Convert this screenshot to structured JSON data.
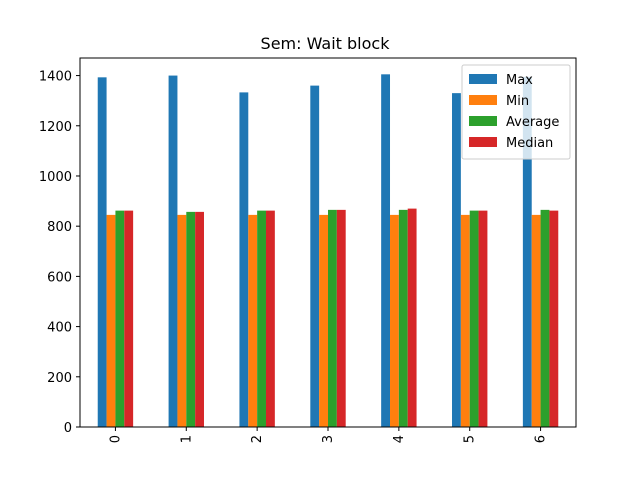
{
  "chart_data": {
    "type": "bar",
    "title": "Sem: Wait block",
    "xlabel": "",
    "ylabel": "",
    "categories": [
      "0",
      "1",
      "2",
      "3",
      "4",
      "5",
      "6"
    ],
    "x_tick_rotation": "vertical",
    "ylim": [
      0,
      1470
    ],
    "yticks": [
      0,
      200,
      400,
      600,
      800,
      1000,
      1200,
      1400
    ],
    "grid": false,
    "legend_position": "top-right",
    "series": [
      {
        "name": "Max",
        "color": "#1f77b4",
        "values": [
          1393,
          1400,
          1333,
          1360,
          1405,
          1330,
          1395
        ]
      },
      {
        "name": "Min",
        "color": "#ff7f0e",
        "values": [
          845,
          845,
          845,
          845,
          845,
          845,
          845
        ]
      },
      {
        "name": "Average",
        "color": "#2ca02c",
        "values": [
          862,
          857,
          862,
          865,
          865,
          862,
          865
        ]
      },
      {
        "name": "Median",
        "color": "#d62728",
        "values": [
          862,
          857,
          862,
          865,
          870,
          862,
          862
        ]
      }
    ]
  }
}
